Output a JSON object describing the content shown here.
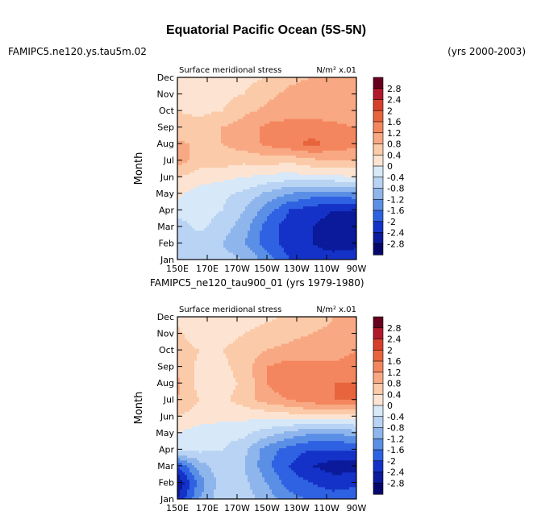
{
  "page": {
    "title": "Equatorial Pacific Ocean (5S-5N)",
    "case_left": "FAMIPC5.ne120.ys.tau5m.02",
    "case_right": "(yrs 2000-2003)"
  },
  "chart_data": [
    {
      "type": "heatmap",
      "panel_title": "",
      "variable": "Surface meridional stress",
      "units": "N/m² x.01",
      "ylabel": "Month",
      "x_ticks": [
        "150E",
        "170E",
        "170W",
        "150W",
        "130W",
        "110W",
        "90W"
      ],
      "y_ticks": [
        "Jan",
        "Feb",
        "Mar",
        "Apr",
        "May",
        "Jun",
        "Jul",
        "Aug",
        "Sep",
        "Oct",
        "Nov",
        "Dec"
      ],
      "rows": [
        [
          -0.6,
          -0.6,
          -0.6,
          -0.8,
          -1.4,
          -2.0,
          -2.2,
          -2.2,
          -2.0
        ],
        [
          -0.6,
          -0.6,
          -0.8,
          -1.2,
          -1.8,
          -2.2,
          -2.4,
          -2.6,
          -2.6
        ],
        [
          -0.6,
          -0.3,
          -0.6,
          -1.0,
          -1.8,
          -2.2,
          -2.4,
          -2.6,
          -2.8
        ],
        [
          -0.2,
          -0.2,
          -0.4,
          -0.8,
          -1.4,
          -2.0,
          -2.2,
          -2.4,
          -2.4
        ],
        [
          0.1,
          -0.2,
          -0.3,
          -0.5,
          -0.9,
          -1.2,
          -1.4,
          -1.4,
          -1.3
        ],
        [
          0.4,
          0.2,
          0.1,
          0.0,
          -0.1,
          -0.2,
          -0.1,
          -0.1,
          0.0
        ],
        [
          1.0,
          0.6,
          0.6,
          0.5,
          0.6,
          0.5,
          0.7,
          0.8,
          0.8
        ],
        [
          0.9,
          0.7,
          0.8,
          1.0,
          1.3,
          1.5,
          1.7,
          1.5,
          1.3
        ],
        [
          0.5,
          0.6,
          0.8,
          1.0,
          1.3,
          1.4,
          1.4,
          1.3,
          1.2
        ],
        [
          0.4,
          0.3,
          0.4,
          0.7,
          0.9,
          1.0,
          1.0,
          1.0,
          0.9
        ],
        [
          0.1,
          0.3,
          0.3,
          0.4,
          0.7,
          0.9,
          1.0,
          0.9,
          0.9
        ],
        [
          0.1,
          0.2,
          0.2,
          0.3,
          0.4,
          0.7,
          0.8,
          0.9,
          0.9
        ]
      ]
    },
    {
      "type": "heatmap",
      "panel_title": "FAMIPC5_ne120_tau900_01 (yrs 1979-1980)",
      "variable": "Surface meridional stress",
      "units": "N/m² x.01",
      "ylabel": "Month",
      "x_ticks": [
        "150E",
        "170E",
        "170W",
        "150W",
        "130W",
        "110W",
        "90W"
      ],
      "y_ticks": [
        "Jan",
        "Feb",
        "Mar",
        "Apr",
        "May",
        "Jun",
        "Jul",
        "Aug",
        "Sep",
        "Oct",
        "Nov",
        "Dec"
      ],
      "rows": [
        [
          -2.4,
          -1.2,
          -0.5,
          -0.6,
          -1.0,
          -1.4,
          -1.7,
          -1.8,
          -1.7
        ],
        [
          -2.8,
          -1.4,
          -0.6,
          -0.7,
          -1.2,
          -1.8,
          -2.0,
          -2.2,
          -2.1
        ],
        [
          -2.0,
          -1.0,
          -0.5,
          -0.8,
          -1.5,
          -2.0,
          -2.4,
          -2.6,
          -2.6
        ],
        [
          -0.2,
          -0.3,
          -0.4,
          -0.7,
          -1.4,
          -1.8,
          -2.0,
          -2.0,
          -2.0
        ],
        [
          0.0,
          -0.2,
          -0.2,
          -0.3,
          -0.6,
          -0.9,
          -1.2,
          -1.2,
          -1.0
        ],
        [
          0.4,
          0.2,
          0.1,
          0.1,
          0.1,
          0.2,
          0.3,
          0.3,
          0.3
        ],
        [
          0.8,
          0.4,
          0.3,
          0.6,
          1.0,
          1.2,
          1.4,
          1.6,
          1.6
        ],
        [
          0.9,
          0.2,
          0.2,
          0.5,
          1.2,
          1.5,
          1.6,
          1.6,
          1.6
        ],
        [
          0.7,
          0.3,
          0.3,
          0.6,
          1.2,
          1.4,
          1.3,
          1.3,
          1.4
        ],
        [
          0.6,
          0.4,
          0.4,
          0.6,
          0.8,
          0.9,
          1.0,
          1.0,
          1.2
        ],
        [
          0.5,
          0.1,
          0.2,
          0.4,
          0.6,
          0.7,
          0.8,
          0.9,
          1.2
        ],
        [
          0.3,
          0.0,
          0.1,
          0.2,
          0.3,
          0.5,
          0.6,
          0.8,
          1.0
        ]
      ]
    }
  ],
  "colorbar": {
    "labels": [
      "2.8",
      "2.4",
      "2",
      "1.6",
      "1.2",
      "0.8",
      "0.4",
      "0",
      "-0.4",
      "-0.8",
      "-1.2",
      "-1.6",
      "-2",
      "-2.4",
      "-2.8"
    ],
    "levels": [
      2.8,
      2.4,
      2.0,
      1.6,
      1.2,
      0.8,
      0.4,
      0.0,
      -0.4,
      -0.8,
      -1.2,
      -1.6,
      -2.0,
      -2.4,
      -2.8
    ],
    "colors": [
      "#67001f",
      "#b2182b",
      "#d6402b",
      "#e8643d",
      "#f4865f",
      "#f8a882",
      "#fbcaa8",
      "#fde4d2",
      "#d7e8f9",
      "#b8d3f3",
      "#8fb6ec",
      "#5b8fe6",
      "#2f62e2",
      "#1432c8",
      "#0a1a9a",
      "#05086a"
    ]
  }
}
